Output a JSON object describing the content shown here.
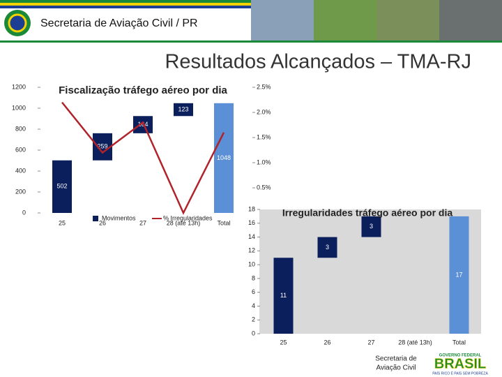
{
  "header": {
    "org": "Secretaria de Aviação Civil / PR"
  },
  "title": "Resultados Alcançados – TMA-RJ",
  "chart_data": [
    {
      "type": "waterfall",
      "title": "Fiscalização tráfego aéreo por dia",
      "categories": [
        "25",
        "26",
        "27",
        "28 (até 13h)",
        "Total"
      ],
      "measure": [
        "relative",
        "relative",
        "relative",
        "relative",
        "total"
      ],
      "series": [
        {
          "name": "Movimentos",
          "colors": [
            "#0b1f5c",
            "#0b1f5c",
            "#0b1f5c",
            "#0b1f5c",
            "#5b8fd6"
          ],
          "values": [
            502,
            259,
            164,
            123,
            1048
          ]
        },
        {
          "name": "% Irregularidades",
          "type": "line",
          "axis": "y2",
          "color": "#b0232a",
          "values": [
            2.2,
            1.2,
            1.8,
            0,
            1.6
          ]
        }
      ],
      "ylim": [
        0,
        1200
      ],
      "yticks": [
        0,
        200,
        400,
        600,
        800,
        1000,
        1200
      ],
      "y2lim": [
        0,
        2.5
      ],
      "y2ticks": [
        {
          "value": 0.5,
          "label": "0.5%"
        },
        {
          "value": 1.0,
          "label": "1.0%"
        },
        {
          "value": 1.5,
          "label": "1.5%"
        },
        {
          "value": 2.0,
          "label": "2.0%"
        },
        {
          "value": 2.5,
          "label": "2.5%"
        }
      ],
      "legend": "bottom"
    },
    {
      "type": "waterfall",
      "title": "Irregularidades tráfego aéreo por dia",
      "categories": [
        "25",
        "26",
        "27",
        "28 (até 13h)",
        "Total"
      ],
      "measure": [
        "relative",
        "relative",
        "relative",
        "relative",
        "total"
      ],
      "series": [
        {
          "colors": [
            "#0b1f5c",
            "#0b1f5c",
            "#0b1f5c",
            "#0b1f5c",
            "#5b8fd6"
          ],
          "values": [
            11,
            3,
            3,
            0,
            17
          ]
        }
      ],
      "ylim": [
        0,
        18
      ],
      "yticks": [
        0,
        2,
        4,
        6,
        8,
        10,
        12,
        14,
        16,
        18
      ]
    }
  ],
  "footer": {
    "org_line1": "Secretaria de",
    "org_line2": "Aviação Civil",
    "gov": "GOVERNO FEDERAL",
    "brand": "BRASIL",
    "slogan": "PAÍS RICO É PAÍS SEM POBREZA"
  }
}
